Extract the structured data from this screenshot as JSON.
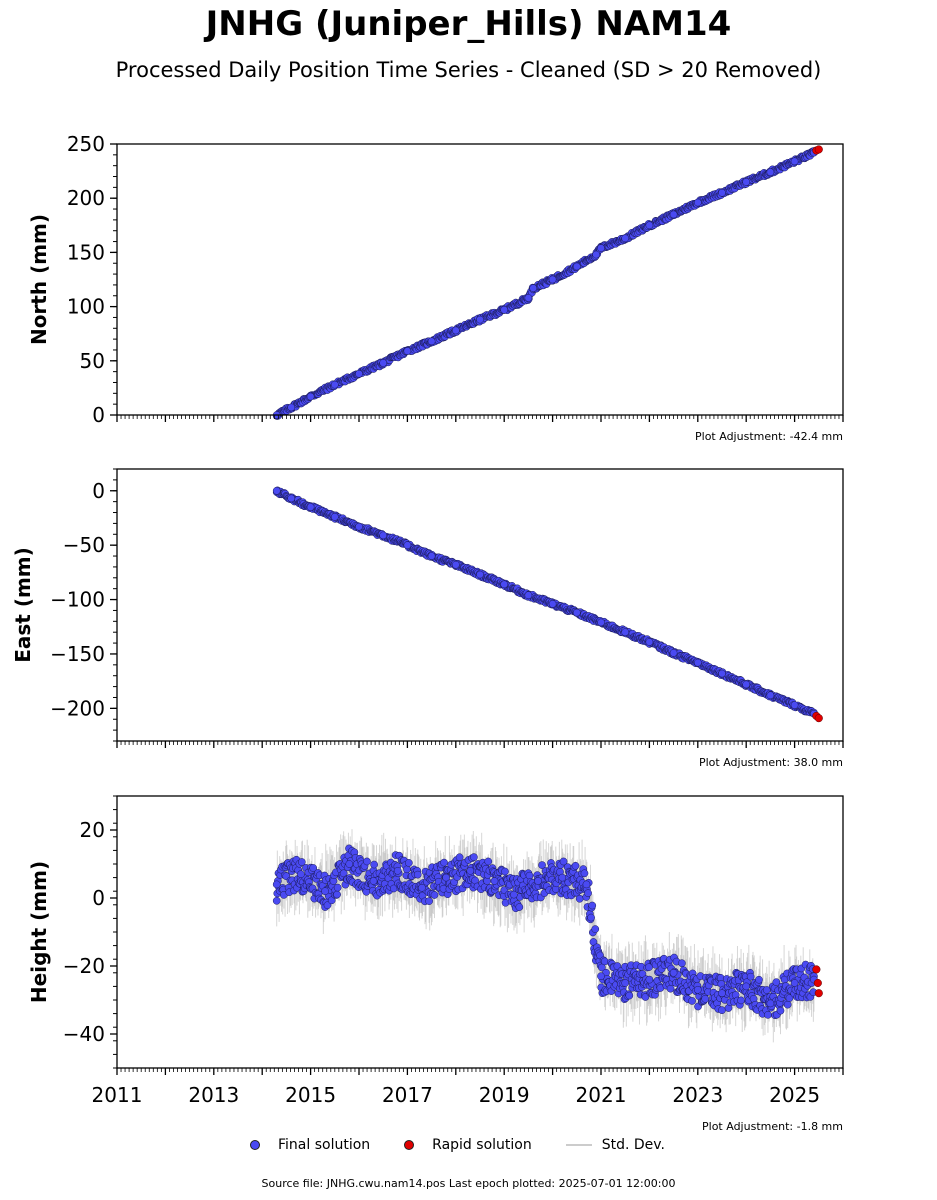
{
  "title": "JNHG (Juniper_Hills) NAM14",
  "subtitle": "Processed Daily Position Time Series - Cleaned (SD > 20 Removed)",
  "source_text": "Source file: JNHG.cwu.nam14.pos  Last epoch plotted: 2025-07-01 12:00:00",
  "legend": {
    "final": "Final solution",
    "rapid": "Rapid solution",
    "std": "Std. Dev."
  },
  "colors": {
    "final": "#4a4af2",
    "rapid": "#e00000",
    "std": "#bbbbbb"
  },
  "chart_data": [
    {
      "type": "scatter",
      "ylabel": "North (mm)",
      "ylim": [
        0,
        250
      ],
      "xlim": [
        2011,
        2026
      ],
      "yticks": [
        0,
        50,
        100,
        150,
        200,
        250
      ],
      "adjustment": "Plot Adjustment: -42.4 mm",
      "series": [
        {
          "name": "Final solution",
          "x": [
            2014.3,
            2014.6,
            2015.0,
            2015.5,
            2016.0,
            2016.5,
            2017.0,
            2017.5,
            2018.0,
            2018.5,
            2019.0,
            2019.5,
            2019.6,
            2020.0,
            2020.5,
            2020.9,
            2021.0,
            2021.5,
            2022.0,
            2022.5,
            2023.0,
            2023.5,
            2024.0,
            2024.5,
            2025.0,
            2025.4
          ],
          "y": [
            0,
            7,
            17,
            28,
            38,
            48,
            59,
            68,
            78,
            88,
            97,
            108,
            117,
            125,
            137,
            148,
            154,
            163,
            175,
            185,
            196,
            205,
            215,
            224,
            234,
            242
          ]
        },
        {
          "name": "Rapid solution",
          "x": [
            2025.45,
            2025.5
          ],
          "y": [
            244,
            245
          ]
        }
      ]
    },
    {
      "type": "scatter",
      "ylabel": "East (mm)",
      "ylim": [
        -230,
        20
      ],
      "xlim": [
        2011,
        2026
      ],
      "yticks": [
        0,
        -50,
        -100,
        -150,
        -200
      ],
      "adjustment": "Plot Adjustment: 38.0 mm",
      "series": [
        {
          "name": "Final solution",
          "x": [
            2014.3,
            2014.6,
            2015.0,
            2015.5,
            2016.0,
            2016.5,
            2017.0,
            2017.5,
            2018.0,
            2018.5,
            2019.0,
            2019.5,
            2020.0,
            2020.5,
            2021.0,
            2021.5,
            2022.0,
            2022.5,
            2023.0,
            2023.5,
            2024.0,
            2024.5,
            2025.0,
            2025.4
          ],
          "y": [
            0,
            -7,
            -15,
            -24,
            -33,
            -41,
            -50,
            -60,
            -68,
            -77,
            -86,
            -96,
            -104,
            -112,
            -121,
            -130,
            -139,
            -149,
            -158,
            -168,
            -178,
            -188,
            -197,
            -205
          ]
        },
        {
          "name": "Rapid solution",
          "x": [
            2025.45,
            2025.5
          ],
          "y": [
            -207,
            -209
          ]
        }
      ]
    },
    {
      "type": "scatter",
      "ylabel": "Height (mm)",
      "ylim": [
        -50,
        30
      ],
      "xlim": [
        2011,
        2026
      ],
      "yticks": [
        20,
        0,
        -20,
        -40
      ],
      "xticks": [
        2011,
        2013,
        2015,
        2017,
        2019,
        2021,
        2023,
        2025
      ],
      "adjustment": "Plot Adjustment: -1.8 mm",
      "series": [
        {
          "name": "Final solution",
          "x": [
            2014.3,
            2014.8,
            2015.3,
            2015.8,
            2016.3,
            2016.8,
            2017.3,
            2017.8,
            2018.3,
            2018.8,
            2019.2,
            2019.7,
            2020.2,
            2020.7,
            2021.0,
            2021.5,
            2022.0,
            2022.5,
            2023.0,
            2023.5,
            2024.0,
            2024.5,
            2025.0,
            2025.4
          ],
          "y": [
            4,
            7,
            2,
            10,
            5,
            8,
            3,
            6,
            8,
            5,
            1,
            5,
            6,
            4,
            -23,
            -25,
            -24,
            -22,
            -27,
            -28,
            -26,
            -31,
            -25,
            -24
          ]
        },
        {
          "name": "Rapid solution",
          "x": [
            2025.45,
            2025.48,
            2025.5
          ],
          "y": [
            -21,
            -25,
            -28
          ]
        }
      ]
    }
  ]
}
